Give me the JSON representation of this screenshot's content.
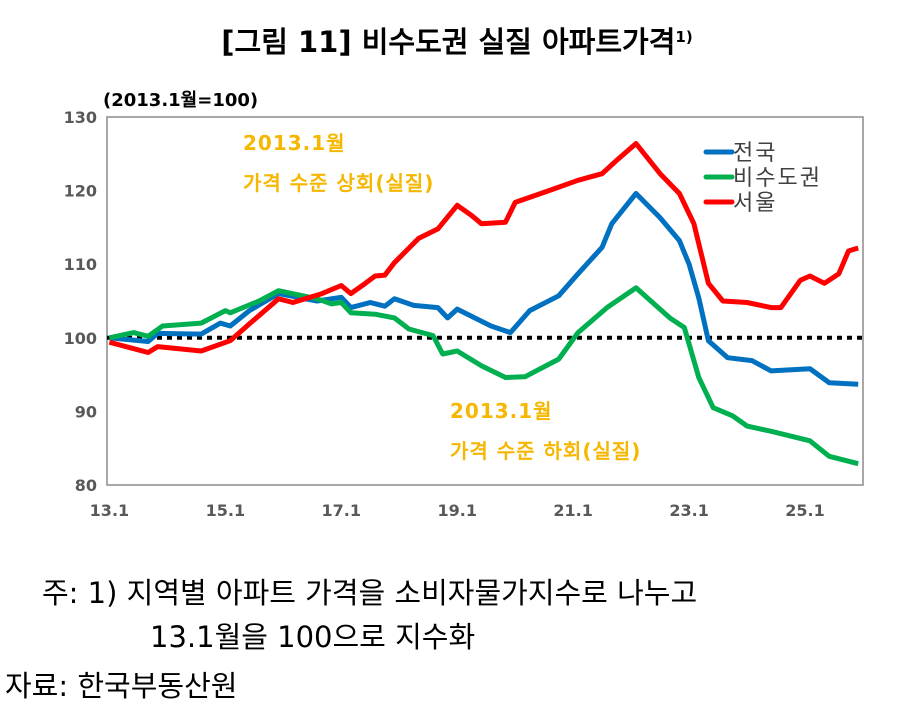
{
  "chart_data": {
    "type": "line",
    "title": "[그림 11] 비수도권 실질 아파트가격",
    "title_superscript": "1)",
    "unit_label": "(2013.1월=100)",
    "x_unit": "months since 2013.1",
    "xlim": [
      -0.5,
      156
    ],
    "ylim": [
      80,
      130
    ],
    "yticks": [
      80,
      90,
      100,
      110,
      120,
      130
    ],
    "xticks": [
      {
        "value": 0,
        "label": "13.1"
      },
      {
        "value": 24,
        "label": "15.1"
      },
      {
        "value": 48,
        "label": "17.1"
      },
      {
        "value": 72,
        "label": "19.1"
      },
      {
        "value": 96,
        "label": "21.1"
      },
      {
        "value": 120,
        "label": "23.1"
      },
      {
        "value": 144,
        "label": "25.1"
      }
    ],
    "reference_line": 100,
    "grid": false,
    "legend_position": "top-right",
    "annotations": [
      {
        "lines": [
          "2013.1월",
          "가격 수준 상회(실질)"
        ],
        "position": "upper-left"
      },
      {
        "lines": [
          "2013.1월",
          "가격 수준 하회(실질)"
        ],
        "position": "lower-middle"
      }
    ],
    "series": [
      {
        "name": "전국",
        "color": "#0070C0",
        "points": [
          [
            0,
            100
          ],
          [
            8,
            99.5
          ],
          [
            10,
            100.6
          ],
          [
            19,
            100.5
          ],
          [
            23,
            102
          ],
          [
            25,
            101.6
          ],
          [
            29,
            103.7
          ],
          [
            35,
            106
          ],
          [
            43,
            105
          ],
          [
            48,
            105.5
          ],
          [
            50,
            104.1
          ],
          [
            54,
            104.8
          ],
          [
            57,
            104.3
          ],
          [
            59,
            105.3
          ],
          [
            63,
            104.4
          ],
          [
            68,
            104.1
          ],
          [
            70,
            102.7
          ],
          [
            72,
            103.9
          ],
          [
            79,
            101.6
          ],
          [
            83,
            100.7
          ],
          [
            87,
            103.7
          ],
          [
            93,
            105.7
          ],
          [
            97,
            108.7
          ],
          [
            102,
            112.3
          ],
          [
            104,
            115.5
          ],
          [
            109,
            119.6
          ],
          [
            114,
            116.3
          ],
          [
            118,
            113.2
          ],
          [
            120,
            110
          ],
          [
            122,
            105.4
          ],
          [
            124,
            99.6
          ],
          [
            128,
            97.3
          ],
          [
            133,
            96.9
          ],
          [
            137,
            95.5
          ],
          [
            145,
            95.8
          ],
          [
            149,
            93.9
          ],
          [
            155,
            93.7
          ]
        ]
      },
      {
        "name": "비수도권",
        "color": "#00B050",
        "points": [
          [
            0,
            100
          ],
          [
            5,
            100.7
          ],
          [
            8,
            100.2
          ],
          [
            11,
            101.6
          ],
          [
            19,
            102
          ],
          [
            24,
            103.7
          ],
          [
            25,
            103.4
          ],
          [
            31,
            105
          ],
          [
            35,
            106.4
          ],
          [
            43,
            105.3
          ],
          [
            46,
            104.6
          ],
          [
            48,
            104.8
          ],
          [
            50,
            103.4
          ],
          [
            55,
            103.2
          ],
          [
            59,
            102.7
          ],
          [
            62,
            101.2
          ],
          [
            67,
            100.3
          ],
          [
            69,
            97.8
          ],
          [
            72,
            98.2
          ],
          [
            77,
            96.2
          ],
          [
            82,
            94.6
          ],
          [
            86,
            94.7
          ],
          [
            93,
            97.1
          ],
          [
            97,
            100.7
          ],
          [
            103,
            104.1
          ],
          [
            109,
            106.8
          ],
          [
            116,
            102.7
          ],
          [
            119,
            101.4
          ],
          [
            122,
            94.6
          ],
          [
            125,
            90.5
          ],
          [
            129,
            89.4
          ],
          [
            132,
            88
          ],
          [
            137,
            87.3
          ],
          [
            145,
            86
          ],
          [
            149,
            83.9
          ],
          [
            155,
            82.9
          ]
        ]
      },
      {
        "name": "서울",
        "color": "#FF0000",
        "points": [
          [
            0,
            99.4
          ],
          [
            8,
            98
          ],
          [
            10,
            98.8
          ],
          [
            19,
            98.2
          ],
          [
            25,
            99.6
          ],
          [
            29,
            101.9
          ],
          [
            35,
            105.3
          ],
          [
            38,
            104.8
          ],
          [
            44,
            106
          ],
          [
            48,
            107.1
          ],
          [
            50,
            106
          ],
          [
            53,
            107.4
          ],
          [
            55,
            108.4
          ],
          [
            57,
            108.5
          ],
          [
            59,
            110.2
          ],
          [
            64,
            113.5
          ],
          [
            68,
            114.8
          ],
          [
            72,
            118
          ],
          [
            75,
            116.6
          ],
          [
            77,
            115.5
          ],
          [
            82,
            115.7
          ],
          [
            84,
            118.4
          ],
          [
            91,
            120
          ],
          [
            97,
            121.4
          ],
          [
            102,
            122.3
          ],
          [
            105,
            124.1
          ],
          [
            109,
            126.4
          ],
          [
            114,
            122.3
          ],
          [
            118,
            119.6
          ],
          [
            121,
            115.5
          ],
          [
            124,
            107.4
          ],
          [
            127,
            105
          ],
          [
            132,
            104.8
          ],
          [
            137,
            104.1
          ],
          [
            139,
            104.1
          ],
          [
            143,
            107.8
          ],
          [
            145,
            108.4
          ],
          [
            148,
            107.4
          ],
          [
            151,
            108.7
          ],
          [
            153,
            111.8
          ],
          [
            155,
            112.2
          ]
        ]
      }
    ]
  },
  "footnote": {
    "line1": "주: 1)  지역별 아파트 가격을 소비자물가지수로 나누고",
    "line2": "13.1월을 100으로 지수화",
    "source": "자료:  한국부동산원"
  }
}
